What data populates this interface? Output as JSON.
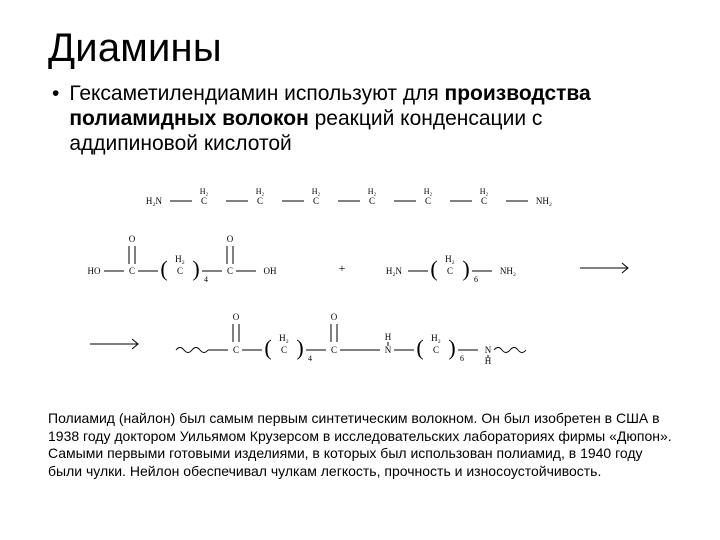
{
  "title": "Диамины",
  "bullet_text_pre": "Гексаметилендиамин используют для ",
  "bullet_text_bold": "производства полиамидных волокон",
  "bullet_text_post": " реакций конденсации с аддипиновой кислотой",
  "footnote": "Полиамид (найлон) был самым первым синтетическим волокном. Он был изобретен в США в 1938 году доктором Уильямом Крузерсом в исследовательских лабораториях фирмы «Дюпон». Самыми первыми готовыми изделиями, в которых был использован полиамид, в 1940 году были чулки. Нейлон обеспечивал чулкам легкость, прочность и износоустойчивость.",
  "chem": {
    "labels": {
      "H2N": "H₂N",
      "NH2": "NH₂",
      "H2": "H₂",
      "C": "C",
      "O": "O",
      "HO": "HO",
      "OH": "OH",
      "H": "H",
      "N": "N",
      "NH": "N",
      "NHh": "H",
      "4": "4",
      "6": "6",
      "plus": "+"
    },
    "style": {
      "font_family": "Times New Roman, Times, serif",
      "font_size_small": 9,
      "font_size_sub": 7,
      "font_size_paren_big": 22,
      "stroke": "#000000",
      "stroke_width": 1,
      "arrow_len": 48,
      "arrow_head": 5,
      "bg": "#ffffff",
      "paren_fill": "#000000"
    }
  }
}
